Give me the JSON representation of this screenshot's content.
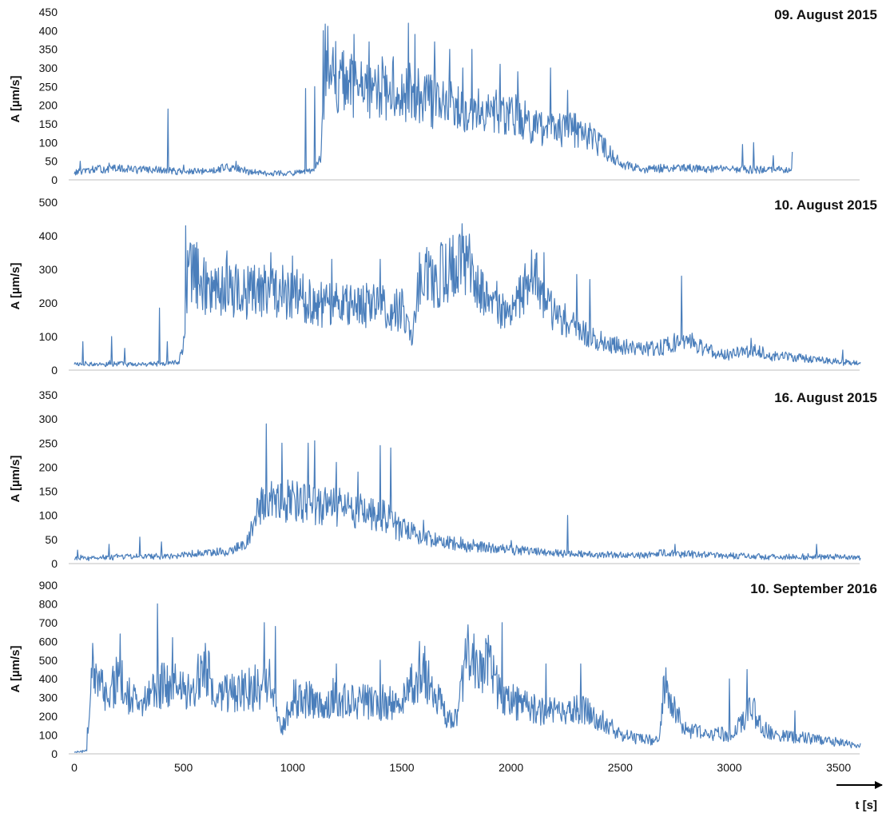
{
  "chart_data": [
    {
      "type": "line",
      "title": "09. August 2015",
      "ylabel": "A [µm/s]",
      "xlabel": "",
      "xlim": [
        0,
        3600
      ],
      "ylim": [
        0,
        450
      ],
      "y_ticks": [
        0,
        50,
        100,
        150,
        200,
        250,
        300,
        350,
        400,
        450
      ],
      "grid": false,
      "series": [
        {
          "color": "#4a7ebb",
          "x": [
            0,
            100,
            200,
            300,
            400,
            500,
            600,
            700,
            800,
            900,
            1000,
            1050,
            1100,
            1130,
            1150,
            1200,
            1300,
            1400,
            1500,
            1600,
            1700,
            1800,
            1900,
            2000,
            2100,
            2200,
            2300,
            2400,
            2500,
            2600,
            2700,
            2800,
            2900,
            3000,
            3100,
            3200,
            3290
          ],
          "y": [
            20,
            28,
            30,
            28,
            26,
            22,
            22,
            35,
            22,
            18,
            18,
            20,
            25,
            60,
            330,
            270,
            240,
            230,
            240,
            220,
            205,
            200,
            190,
            180,
            150,
            130,
            135,
            100,
            45,
            30,
            30,
            30,
            30,
            28,
            28,
            28,
            25
          ],
          "spikes": [
            [
              28,
              50
            ],
            [
              160,
              45
            ],
            [
              430,
              190
            ],
            [
              500,
              40
            ],
            [
              740,
              50
            ],
            [
              1060,
              245
            ],
            [
              1100,
              250
            ],
            [
              1140,
              400
            ],
            [
              1220,
              300
            ],
            [
              1280,
              390
            ],
            [
              1350,
              370
            ],
            [
              1410,
              330
            ],
            [
              1460,
              330
            ],
            [
              1530,
              420
            ],
            [
              1560,
              390
            ],
            [
              1650,
              370
            ],
            [
              1720,
              350
            ],
            [
              1780,
              300
            ],
            [
              1820,
              350
            ],
            [
              1950,
              310
            ],
            [
              2030,
              290
            ],
            [
              2180,
              300
            ],
            [
              2260,
              240
            ],
            [
              3060,
              95
            ],
            [
              3110,
              100
            ],
            [
              3200,
              65
            ],
            [
              3290,
              75
            ]
          ]
        }
      ]
    },
    {
      "type": "line",
      "title": "10. August 2015",
      "ylabel": "A [µm/s]",
      "xlabel": "",
      "xlim": [
        0,
        3600
      ],
      "ylim": [
        0,
        500
      ],
      "y_ticks": [
        0,
        100,
        200,
        300,
        400,
        500
      ],
      "grid": false,
      "series": [
        {
          "color": "#4a7ebb",
          "x": [
            0,
            100,
            200,
            300,
            400,
            480,
            500,
            520,
            600,
            700,
            800,
            900,
            1000,
            1100,
            1200,
            1300,
            1400,
            1500,
            1550,
            1580,
            1650,
            1700,
            1770,
            1850,
            1950,
            2000,
            2100,
            2200,
            2300,
            2400,
            2500,
            2600,
            2700,
            2800,
            2900,
            3000,
            3100,
            3200,
            3300,
            3400,
            3500,
            3600
          ],
          "y": [
            18,
            18,
            20,
            18,
            20,
            25,
            80,
            300,
            250,
            240,
            230,
            240,
            230,
            200,
            195,
            200,
            190,
            180,
            100,
            270,
            280,
            290,
            350,
            260,
            190,
            170,
            280,
            170,
            120,
            90,
            70,
            60,
            70,
            90,
            60,
            45,
            60,
            45,
            38,
            30,
            25,
            20
          ],
          "spikes": [
            [
              40,
              85
            ],
            [
              170,
              100
            ],
            [
              230,
              65
            ],
            [
              390,
              185
            ],
            [
              425,
              85
            ],
            [
              510,
              430
            ],
            [
              560,
              380
            ],
            [
              700,
              355
            ],
            [
              900,
              350
            ],
            [
              1000,
              340
            ],
            [
              1180,
              330
            ],
            [
              1400,
              330
            ],
            [
              1580,
              350
            ],
            [
              1680,
              380
            ],
            [
              1760,
              395
            ],
            [
              2150,
              350
            ],
            [
              2300,
              285
            ],
            [
              2360,
              270
            ],
            [
              2780,
              280
            ],
            [
              3100,
              95
            ],
            [
              3520,
              60
            ]
          ]
        }
      ]
    },
    {
      "type": "line",
      "title": "16. August 2015",
      "ylabel": "A [µm/s]",
      "xlabel": "",
      "xlim": [
        0,
        3600
      ],
      "ylim": [
        0,
        350
      ],
      "y_ticks": [
        0,
        50,
        100,
        150,
        200,
        250,
        300,
        350
      ],
      "grid": false,
      "series": [
        {
          "color": "#4a7ebb",
          "x": [
            0,
            100,
            200,
            300,
            400,
            500,
            600,
            700,
            780,
            820,
            860,
            900,
            1000,
            1100,
            1200,
            1300,
            1400,
            1450,
            1500,
            1600,
            1700,
            1800,
            1900,
            2000,
            2100,
            2200,
            2300,
            2400,
            2500,
            2600,
            2700,
            2800,
            2900,
            3000,
            3100,
            3200,
            3300,
            3400,
            3500,
            3600
          ],
          "y": [
            12,
            12,
            14,
            15,
            15,
            18,
            22,
            25,
            40,
            80,
            140,
            130,
            130,
            120,
            120,
            110,
            100,
            90,
            70,
            55,
            45,
            38,
            32,
            28,
            25,
            22,
            20,
            18,
            18,
            18,
            22,
            20,
            18,
            16,
            15,
            14,
            14,
            14,
            14,
            12
          ],
          "spikes": [
            [
              15,
              28
            ],
            [
              160,
              40
            ],
            [
              300,
              55
            ],
            [
              400,
              45
            ],
            [
              880,
              290
            ],
            [
              950,
              250
            ],
            [
              1070,
              250
            ],
            [
              1100,
              255
            ],
            [
              1200,
              210
            ],
            [
              1300,
              190
            ],
            [
              1400,
              245
            ],
            [
              1450,
              240
            ],
            [
              1600,
              90
            ],
            [
              2000,
              48
            ],
            [
              2260,
              100
            ],
            [
              2750,
              40
            ],
            [
              3400,
              40
            ]
          ]
        }
      ]
    },
    {
      "type": "line",
      "title": "10. September 2016",
      "ylabel": "A [µm/s]",
      "xlabel": "t [s]",
      "xlim": [
        0,
        3600
      ],
      "x_ticks": [
        0,
        500,
        1000,
        1500,
        2000,
        2500,
        3000,
        3500
      ],
      "ylim": [
        0,
        900
      ],
      "y_ticks": [
        0,
        100,
        200,
        300,
        400,
        500,
        600,
        700,
        800,
        900
      ],
      "grid": false,
      "series": [
        {
          "color": "#4a7ebb",
          "x": [
            0,
            40,
            60,
            80,
            150,
            200,
            300,
            400,
            500,
            600,
            700,
            800,
            900,
            950,
            1000,
            1100,
            1200,
            1300,
            1400,
            1500,
            1550,
            1600,
            1700,
            1750,
            1800,
            1850,
            1900,
            1950,
            2000,
            2100,
            2200,
            2300,
            2400,
            2500,
            2600,
            2680,
            2700,
            2720,
            2800,
            2900,
            3000,
            3080,
            3100,
            3150,
            3200,
            3300,
            3400,
            3500,
            3600
          ],
          "y": [
            10,
            10,
            30,
            400,
            320,
            400,
            250,
            380,
            350,
            420,
            320,
            350,
            380,
            120,
            300,
            280,
            300,
            270,
            280,
            260,
            380,
            450,
            200,
            180,
            520,
            450,
            480,
            300,
            280,
            240,
            220,
            250,
            190,
            100,
            80,
            70,
            350,
            300,
            120,
            120,
            100,
            200,
            250,
            140,
            110,
            90,
            80,
            60,
            40
          ],
          "spikes": [
            [
              60,
              140
            ],
            [
              85,
              590
            ],
            [
              210,
              640
            ],
            [
              380,
              800
            ],
            [
              450,
              620
            ],
            [
              600,
              590
            ],
            [
              870,
              700
            ],
            [
              920,
              680
            ],
            [
              1200,
              480
            ],
            [
              1400,
              500
            ],
            [
              1580,
              600
            ],
            [
              1800,
              620
            ],
            [
              1830,
              640
            ],
            [
              1960,
              700
            ],
            [
              2160,
              480
            ],
            [
              2320,
              480
            ],
            [
              2710,
              460
            ],
            [
              3000,
              400
            ],
            [
              3080,
              450
            ],
            [
              3300,
              230
            ]
          ]
        }
      ]
    }
  ]
}
